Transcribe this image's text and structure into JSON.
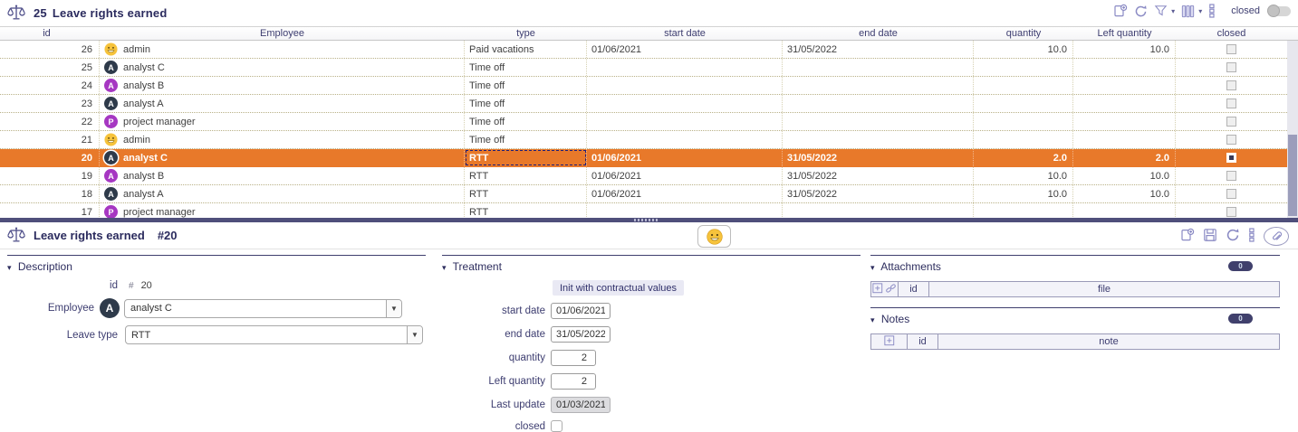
{
  "app": {
    "colors": {
      "selected_row": "#e8792a",
      "dark_avatar": "#2e3a4a",
      "purple_avatar": "#a637c2",
      "smiley_yellow": "#f6c33c",
      "accent_navy": "#3f3f6e",
      "icon_purple": "#8a8ac4"
    },
    "list": {
      "count": "25",
      "name": "Leave rights earned",
      "toolbar": {
        "closed_label": "closed",
        "closed_toggle_state": "off",
        "icons": [
          "new-record-icon",
          "refresh-icon",
          "filter-icon",
          "columns-icon",
          "more-icon"
        ]
      },
      "columns": {
        "id": "id",
        "employee": "Employee",
        "type": "type",
        "start": "start date",
        "end": "end date",
        "quantity": "quantity",
        "left_quantity": "Left quantity",
        "closed": "closed"
      },
      "rows": [
        {
          "id": "26",
          "employee": "admin",
          "avatar": "smiley",
          "letter": "",
          "type": "Paid vacations",
          "start": "01/06/2021",
          "end": "31/05/2022",
          "qty": "10.0",
          "left": "10.0",
          "closed": false,
          "selected": false,
          "focus_type": false
        },
        {
          "id": "25",
          "employee": "analyst C",
          "avatar": "dark",
          "letter": "A",
          "type": "Time off",
          "start": "",
          "end": "",
          "qty": "",
          "left": "",
          "closed": false,
          "selected": false,
          "focus_type": false
        },
        {
          "id": "24",
          "employee": "analyst B",
          "avatar": "purple",
          "letter": "A",
          "type": "Time off",
          "start": "",
          "end": "",
          "qty": "",
          "left": "",
          "closed": false,
          "selected": false,
          "focus_type": false
        },
        {
          "id": "23",
          "employee": "analyst A",
          "avatar": "dark",
          "letter": "A",
          "type": "Time off",
          "start": "",
          "end": "",
          "qty": "",
          "left": "",
          "closed": false,
          "selected": false,
          "focus_type": false
        },
        {
          "id": "22",
          "employee": "project manager",
          "avatar": "purple",
          "letter": "P",
          "type": "Time off",
          "start": "",
          "end": "",
          "qty": "",
          "left": "",
          "closed": false,
          "selected": false,
          "focus_type": false
        },
        {
          "id": "21",
          "employee": "admin",
          "avatar": "smiley",
          "letter": "",
          "type": "Time off",
          "start": "",
          "end": "",
          "qty": "",
          "left": "",
          "closed": false,
          "selected": false,
          "focus_type": false
        },
        {
          "id": "20",
          "employee": "analyst C",
          "avatar": "dark",
          "letter": "A",
          "type": "RTT",
          "start": "01/06/2021",
          "end": "31/05/2022",
          "qty": "2.0",
          "left": "2.0",
          "closed": false,
          "selected": true,
          "focus_type": true
        },
        {
          "id": "19",
          "employee": "analyst B",
          "avatar": "purple",
          "letter": "A",
          "type": "RTT",
          "start": "01/06/2021",
          "end": "31/05/2022",
          "qty": "10.0",
          "left": "10.0",
          "closed": false,
          "selected": false,
          "focus_type": false
        },
        {
          "id": "18",
          "employee": "analyst A",
          "avatar": "dark",
          "letter": "A",
          "type": "RTT",
          "start": "01/06/2021",
          "end": "31/05/2022",
          "qty": "10.0",
          "left": "10.0",
          "closed": false,
          "selected": false,
          "focus_type": false
        },
        {
          "id": "17",
          "employee": "project manager",
          "avatar": "purple",
          "letter": "P",
          "type": "RTT",
          "start": "",
          "end": "",
          "qty": "",
          "left": "",
          "closed": false,
          "selected": false,
          "focus_type": false
        }
      ]
    },
    "detail": {
      "title": "Leave rights earned",
      "record_ref": "#20",
      "toolbar_icons": [
        "new-record-icon",
        "save-icon",
        "refresh-icon",
        "more-icon",
        "attach-icon"
      ],
      "sections": {
        "description": {
          "label": "Description",
          "id_label": "id",
          "id_symbol": "#",
          "id_value": "20",
          "employee_label": "Employee",
          "employee_value": "analyst C",
          "employee_avatar_letter": "A",
          "leave_type_label": "Leave type",
          "leave_type_value": "RTT"
        },
        "treatment": {
          "label": "Treatment",
          "init_button": "Init with contractual values",
          "start_date_label": "start date",
          "start_date_value": "01/06/2021",
          "end_date_label": "end date",
          "end_date_value": "31/05/2022",
          "quantity_label": "quantity",
          "quantity_value": "2",
          "left_quantity_label": "Left quantity",
          "left_quantity_value": "2",
          "last_update_label": "Last update",
          "last_update_value": "01/03/2021",
          "closed_label": "closed",
          "closed_checked": false
        },
        "attachments": {
          "label": "Attachments",
          "count": "0",
          "col_id": "id",
          "col_file": "file"
        },
        "notes": {
          "label": "Notes",
          "count": "0",
          "col_id": "id",
          "col_note": "note"
        }
      }
    }
  }
}
